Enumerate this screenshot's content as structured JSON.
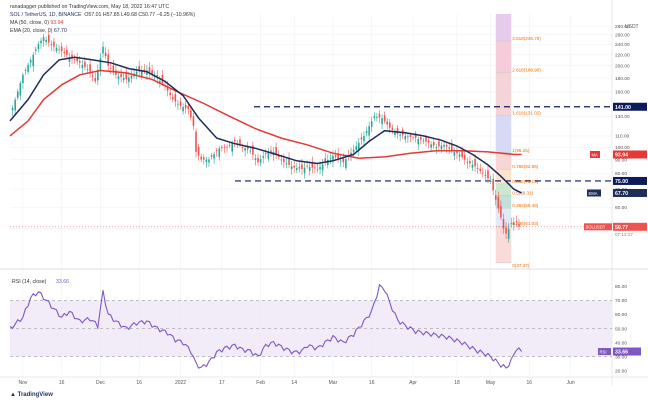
{
  "header": {
    "publisher": "ranadagger published on TradingView.com, May 18, 2022 16:47 UTC",
    "symbol_line": "SOL / TetherUS, 1D, BINANCE",
    "ohlc": "O57.01  H57.85  L49.68  C50.77  −6.25 (−10.96%)",
    "ma_label": "MA (50, close, 0)",
    "ma_value": "93.94",
    "ema_label": "EMA (20, close, 0)",
    "ema_value": "67.70"
  },
  "colors": {
    "up": "#26a69a",
    "down": "#ef5350",
    "ema": "#1f2d5a",
    "ma": "#e53935",
    "rsi": "#7e57c2",
    "level": "#0d1b5c",
    "fib_label": "#ef6c00"
  },
  "price_axis": {
    "label": "USDT",
    "ticks": [
      "280.00",
      "260.00",
      "240.00",
      "220.00",
      "200.00",
      "180.00",
      "160.00",
      "130.00",
      "110.00",
      "100.00",
      "90.00",
      "80.00",
      "70.00",
      "60.00",
      "50.00"
    ]
  },
  "price_tags": {
    "level_141": "141.00",
    "ma": "93.94",
    "level_75": "75.00",
    "ema": "67.70",
    "last": "50.77",
    "countdown": "07:12:17"
  },
  "fib_labels": [
    "3.618(246.78)",
    "2.618(188.90)",
    "1.618(131.02)",
    "1(95.25)",
    "0.786(82.86)",
    "0.618(73.15)",
    "0.5(66.31)",
    "0.382(59.48)",
    "0.236(51.03)",
    "0(37.37)"
  ],
  "time_axis": [
    "Nov",
    "16",
    "Dec",
    "16",
    "2022",
    "17",
    "Feb",
    "14",
    "Mar",
    "16",
    "Apr",
    "18",
    "May",
    "16",
    "Jun"
  ],
  "rsi_panel": {
    "label": "RSI (14, close)",
    "value": "33.66",
    "tag": "RSI",
    "ticks": [
      "80.00",
      "70.00",
      "60.00",
      "50.00",
      "40.00",
      "30.00",
      "20.00"
    ]
  },
  "footer": {
    "brand": "TradingView"
  },
  "chart_data": {
    "type": "candlestick",
    "title": "SOL / TetherUS, 1D, BINANCE",
    "ylabel": "USDT",
    "y_scale": "log",
    "ylim": [
      37,
      290
    ],
    "xlim_days": [
      -5,
      228
    ],
    "x_ticks": [
      {
        "label": "Nov",
        "day": 0
      },
      {
        "label": "16",
        "day": 15
      },
      {
        "label": "Dec",
        "day": 30
      },
      {
        "label": "16",
        "day": 45
      },
      {
        "label": "2022",
        "day": 61
      },
      {
        "label": "17",
        "day": 77
      },
      {
        "label": "Feb",
        "day": 92
      },
      {
        "label": "14",
        "day": 105
      },
      {
        "label": "Mar",
        "day": 120
      },
      {
        "label": "16",
        "day": 135
      },
      {
        "label": "Apr",
        "day": 151
      },
      {
        "label": "18",
        "day": 168
      },
      {
        "label": "May",
        "day": 181
      },
      {
        "label": "16",
        "day": 196
      },
      {
        "label": "Jun",
        "day": 212
      }
    ],
    "close_path": [
      [
        -5,
        130
      ],
      [
        0,
        185
      ],
      [
        3,
        210
      ],
      [
        6,
        240
      ],
      [
        8,
        255
      ],
      [
        11,
        238
      ],
      [
        14,
        230
      ],
      [
        18,
        215
      ],
      [
        22,
        205
      ],
      [
        26,
        190
      ],
      [
        28,
        175
      ],
      [
        31,
        235
      ],
      [
        33,
        200
      ],
      [
        36,
        185
      ],
      [
        40,
        178
      ],
      [
        44,
        190
      ],
      [
        48,
        192
      ],
      [
        52,
        180
      ],
      [
        55,
        168
      ],
      [
        58,
        150
      ],
      [
        61,
        142
      ],
      [
        64,
        138
      ],
      [
        66,
        120
      ],
      [
        67,
        96
      ],
      [
        69,
        90
      ],
      [
        72,
        90
      ],
      [
        76,
        99
      ],
      [
        79,
        100
      ],
      [
        82,
        105
      ],
      [
        85,
        100
      ],
      [
        88,
        97
      ],
      [
        91,
        88
      ],
      [
        94,
        95
      ],
      [
        97,
        96
      ],
      [
        101,
        88
      ],
      [
        105,
        84
      ],
      [
        108,
        83
      ],
      [
        110,
        85
      ],
      [
        114,
        83
      ],
      [
        117,
        88
      ],
      [
        120,
        93
      ],
      [
        124,
        88
      ],
      [
        128,
        98
      ],
      [
        132,
        110
      ],
      [
        136,
        130
      ],
      [
        139,
        128
      ],
      [
        142,
        118
      ],
      [
        145,
        112
      ],
      [
        148,
        110
      ],
      [
        152,
        108
      ],
      [
        156,
        105
      ],
      [
        160,
        100
      ],
      [
        163,
        102
      ],
      [
        166,
        97
      ],
      [
        169,
        94
      ],
      [
        172,
        88
      ],
      [
        175,
        85
      ],
      [
        178,
        80
      ],
      [
        181,
        75
      ],
      [
        183,
        64
      ],
      [
        185,
        55
      ],
      [
        186,
        50
      ],
      [
        187,
        48
      ],
      [
        189,
        52
      ],
      [
        191,
        53
      ],
      [
        192,
        50.77
      ]
    ],
    "series": [
      {
        "name": "MA (50, close, 0)",
        "last": 93.94,
        "path": [
          [
            -5,
            110
          ],
          [
            2,
            125
          ],
          [
            8,
            150
          ],
          [
            15,
            170
          ],
          [
            22,
            185
          ],
          [
            30,
            192
          ],
          [
            40,
            188
          ],
          [
            50,
            178
          ],
          [
            60,
            160
          ],
          [
            70,
            145
          ],
          [
            80,
            130
          ],
          [
            90,
            117
          ],
          [
            100,
            108
          ],
          [
            110,
            102
          ],
          [
            120,
            95
          ],
          [
            130,
            91
          ],
          [
            140,
            92
          ],
          [
            150,
            95
          ],
          [
            160,
            97
          ],
          [
            170,
            97
          ],
          [
            180,
            96
          ],
          [
            190,
            94
          ],
          [
            193,
            93.94
          ]
        ]
      },
      {
        "name": "EMA (20, close, 0)",
        "last": 67.7,
        "path": [
          [
            -5,
            125
          ],
          [
            2,
            150
          ],
          [
            8,
            185
          ],
          [
            14,
            210
          ],
          [
            20,
            215
          ],
          [
            27,
            210
          ],
          [
            34,
            205
          ],
          [
            41,
            195
          ],
          [
            48,
            190
          ],
          [
            55,
            175
          ],
          [
            62,
            155
          ],
          [
            68,
            128
          ],
          [
            75,
            108
          ],
          [
            82,
            103
          ],
          [
            90,
            99
          ],
          [
            98,
            94
          ],
          [
            106,
            89
          ],
          [
            114,
            87
          ],
          [
            120,
            89
          ],
          [
            128,
            94
          ],
          [
            134,
            105
          ],
          [
            140,
            115
          ],
          [
            148,
            113
          ],
          [
            155,
            110
          ],
          [
            162,
            106
          ],
          [
            168,
            101
          ],
          [
            174,
            94
          ],
          [
            180,
            86
          ],
          [
            185,
            78
          ],
          [
            190,
            70
          ],
          [
            193,
            67.7
          ]
        ]
      }
    ],
    "horizontal_levels": [
      {
        "name": "resistance",
        "value": 141
      },
      {
        "name": "support",
        "value": 75
      }
    ],
    "fibonacci_extension": {
      "levels": [
        {
          "ratio": 3.618,
          "value": 246.78
        },
        {
          "ratio": 2.618,
          "value": 188.9
        },
        {
          "ratio": 1.618,
          "value": 131.02
        },
        {
          "ratio": 1,
          "value": 95.25
        },
        {
          "ratio": 0.786,
          "value": 82.86
        },
        {
          "ratio": 0.618,
          "value": 73.15
        },
        {
          "ratio": 0.5,
          "value": 66.31
        },
        {
          "ratio": 0.382,
          "value": 59.48
        },
        {
          "ratio": 0.236,
          "value": 51.03
        },
        {
          "ratio": 0,
          "value": 37.37
        }
      ],
      "x_days": [
        183,
        189
      ]
    },
    "last_close": 50.77,
    "rsi": {
      "name": "RSI (14, close)",
      "last": 33.66,
      "ylim": [
        17,
        88
      ],
      "bands": [
        30,
        70
      ],
      "path": [
        [
          -5,
          50
        ],
        [
          0,
          58
        ],
        [
          3,
          72
        ],
        [
          6,
          76
        ],
        [
          9,
          70
        ],
        [
          12,
          64
        ],
        [
          15,
          58
        ],
        [
          18,
          62
        ],
        [
          22,
          55
        ],
        [
          26,
          57
        ],
        [
          29,
          52
        ],
        [
          31,
          76
        ],
        [
          33,
          60
        ],
        [
          36,
          55
        ],
        [
          40,
          50
        ],
        [
          44,
          54
        ],
        [
          48,
          55
        ],
        [
          52,
          50
        ],
        [
          56,
          47
        ],
        [
          59,
          42
        ],
        [
          62,
          40
        ],
        [
          65,
          34
        ],
        [
          67,
          25
        ],
        [
          69,
          22
        ],
        [
          72,
          26
        ],
        [
          75,
          33
        ],
        [
          78,
          36
        ],
        [
          82,
          38
        ],
        [
          85,
          35
        ],
        [
          88,
          34
        ],
        [
          91,
          30
        ],
        [
          94,
          38
        ],
        [
          97,
          40
        ],
        [
          101,
          36
        ],
        [
          105,
          33
        ],
        [
          108,
          34
        ],
        [
          110,
          38
        ],
        [
          114,
          36
        ],
        [
          117,
          40
        ],
        [
          120,
          44
        ],
        [
          124,
          40
        ],
        [
          128,
          46
        ],
        [
          132,
          55
        ],
        [
          135,
          62
        ],
        [
          138,
          80
        ],
        [
          140,
          78
        ],
        [
          142,
          68
        ],
        [
          145,
          56
        ],
        [
          148,
          52
        ],
        [
          152,
          48
        ],
        [
          155,
          47
        ],
        [
          158,
          46
        ],
        [
          161,
          45
        ],
        [
          164,
          44
        ],
        [
          167,
          42
        ],
        [
          170,
          40
        ],
        [
          173,
          37
        ],
        [
          176,
          34
        ],
        [
          179,
          32
        ],
        [
          181,
          30
        ],
        [
          183,
          27
        ],
        [
          185,
          24
        ],
        [
          187,
          22
        ],
        [
          189,
          27
        ],
        [
          191,
          36
        ],
        [
          193,
          33.66
        ]
      ]
    }
  }
}
